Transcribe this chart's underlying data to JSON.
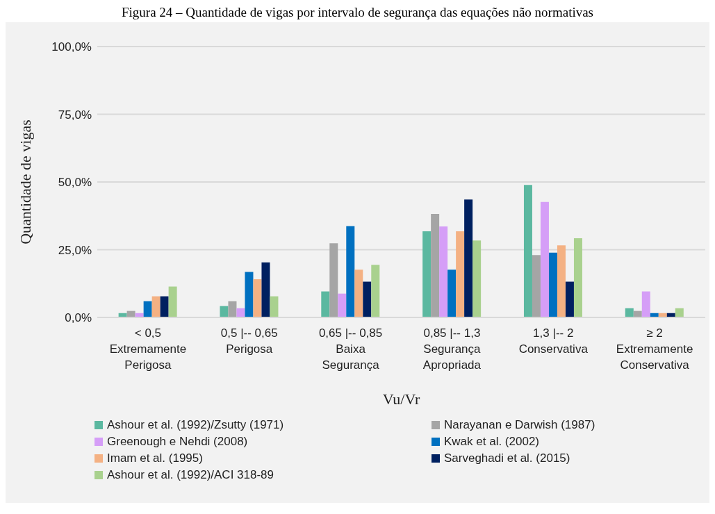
{
  "chart_data": {
    "type": "bar",
    "title": "Figura 24 – Quantidade de vigas por intervalo de segurança das equações não normativas",
    "xlabel": "Vu/Vr",
    "ylabel": "Quantidade de vigas",
    "categories": [
      "< 0,5\nExtremamente\nPerigosa",
      "0,5 |-- 0,65\nPerigosa",
      "0,65 |-- 0,85\nBaixa\nSegurança",
      "0,85 |-- 1,3\nSegurança\nApropriada",
      "1,3 |-- 2\nConservativa",
      "≥ 2\nExtremamente\nConservativa"
    ],
    "series": [
      {
        "name": "Ashour et al. (1992)/Zsutty (1971)",
        "color": "#5bb8a0",
        "values": [
          1.6,
          4.2,
          9.6,
          31.8,
          48.9,
          3.4
        ]
      },
      {
        "name": "Narayanan e Darwish (1987)",
        "color": "#a5a5a5",
        "values": [
          2.4,
          6.0,
          27.4,
          38.2,
          23.0,
          2.4
        ]
      },
      {
        "name": "Greenough e Nehdi (2008)",
        "color": "#d59ef7",
        "values": [
          1.6,
          3.4,
          8.8,
          33.6,
          42.6,
          9.6
        ]
      },
      {
        "name": "Kwak et al. (2002)",
        "color": "#0070c0",
        "values": [
          6.0,
          16.8,
          33.7,
          17.6,
          23.9,
          1.6
        ]
      },
      {
        "name": "Imam et al. (1995)",
        "color": "#f4b183",
        "values": [
          7.8,
          14.1,
          17.6,
          31.8,
          26.6,
          1.6
        ]
      },
      {
        "name": "Sarveghadi et al. (2015)",
        "color": "#002060",
        "values": [
          7.8,
          20.3,
          13.2,
          43.5,
          13.2,
          1.6
        ]
      },
      {
        "name": "Ashour et al. (1992)/ACI 318-89",
        "color": "#a9d18e",
        "values": [
          11.4,
          7.8,
          19.4,
          28.4,
          29.2,
          3.4
        ]
      }
    ],
    "ylim": [
      0,
      100
    ],
    "yticks": [
      {
        "value": 0,
        "label": "0,0%"
      },
      {
        "value": 25,
        "label": "25,0%"
      },
      {
        "value": 50,
        "label": "50,0%"
      },
      {
        "value": 75,
        "label": "75,0%"
      },
      {
        "value": 100,
        "label": "100,0%"
      }
    ],
    "grid": "y",
    "legend": "bottom"
  }
}
